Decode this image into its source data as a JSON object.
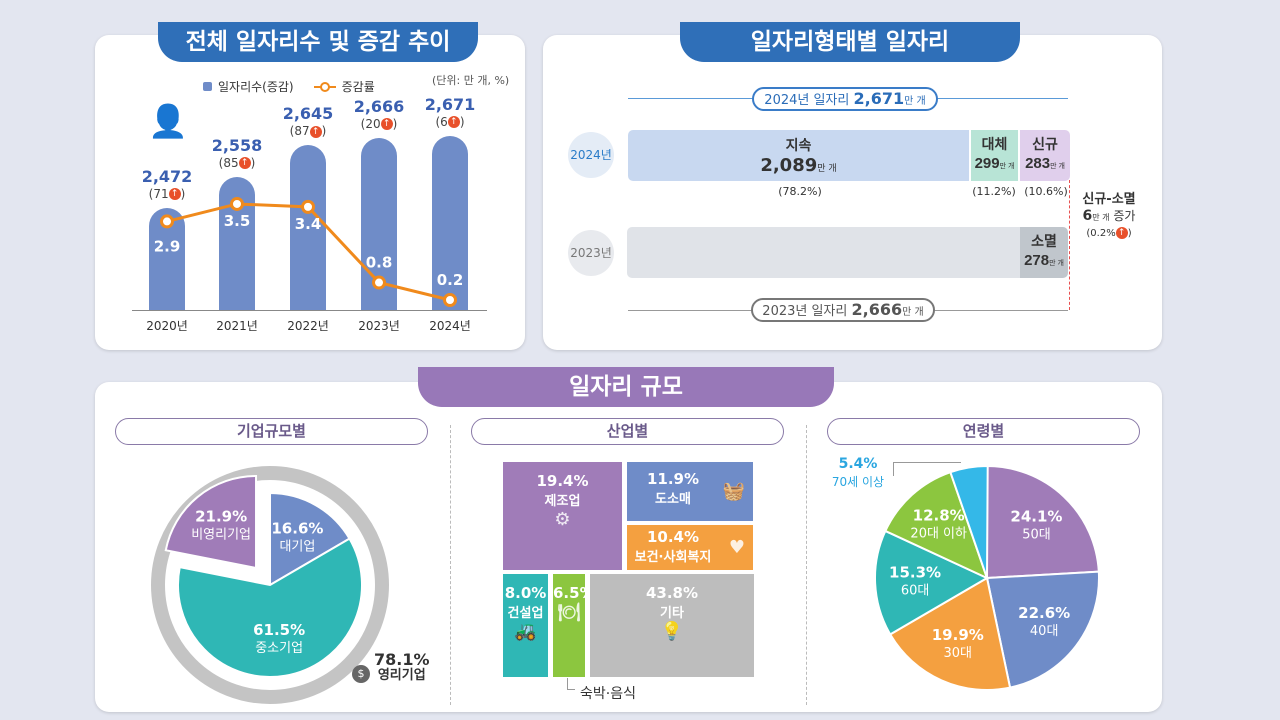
{
  "panel1": {
    "title": "전체 일자리수 및 증감 추이",
    "unit": "(단위: 만 개, %)",
    "legend_bar": "일자리수(증감)",
    "legend_line": "증감률"
  },
  "chart_data": [
    {
      "type": "bar+line",
      "categories": [
        "2020년",
        "2021년",
        "2022년",
        "2023년",
        "2024년"
      ],
      "series": [
        {
          "name": "일자리수(증감)",
          "values": [
            2472,
            2558,
            2645,
            2666,
            2671
          ],
          "labels": [
            "2,472",
            "2,558",
            "2,645",
            "2,666",
            "2,671"
          ],
          "change": [
            "71",
            "85",
            "87",
            "20",
            "6"
          ],
          "color": "#6f8cc8"
        },
        {
          "name": "증감률",
          "values": [
            2.9,
            3.5,
            3.4,
            0.8,
            0.2
          ],
          "labels": [
            "2.9",
            "3.5",
            "3.4",
            "0.8",
            "0.2"
          ],
          "color": "#f08a1c"
        }
      ]
    },
    {
      "type": "pie",
      "title": "기업규모별",
      "slices": [
        {
          "label": "대기업",
          "value": 16.6,
          "pct": "16.6%",
          "color": "#6f8cc8"
        },
        {
          "label": "중소기업",
          "value": 61.5,
          "pct": "61.5%",
          "color": "#2fb7b5"
        },
        {
          "label": "비영리기업",
          "value": 21.9,
          "pct": "21.9%",
          "color": "#a07cb8"
        }
      ],
      "ring": {
        "label": "영리기업",
        "pct": "78.1%"
      }
    },
    {
      "type": "treemap",
      "title": "산업별",
      "items": [
        {
          "label": "제조업",
          "pct": "19.4%",
          "color": "#a07cb8"
        },
        {
          "label": "도소매",
          "pct": "11.9%",
          "color": "#6f8cc8"
        },
        {
          "label": "보건·사회복지",
          "pct": "10.4%",
          "color": "#f4a040"
        },
        {
          "label": "건설업",
          "pct": "8.0%",
          "color": "#2fb7b5"
        },
        {
          "label": "숙박·음식",
          "pct": "6.5%",
          "color": "#8cc63f"
        },
        {
          "label": "기타",
          "pct": "43.8%",
          "color": "#bdbdbd"
        }
      ]
    },
    {
      "type": "pie",
      "title": "연령별",
      "slices": [
        {
          "label": "50대",
          "value": 24.1,
          "pct": "24.1%",
          "color": "#a07cb8"
        },
        {
          "label": "40대",
          "value": 22.6,
          "pct": "22.6%",
          "color": "#6f8cc8"
        },
        {
          "label": "30대",
          "value": 19.9,
          "pct": "19.9%",
          "color": "#f4a040"
        },
        {
          "label": "60대",
          "value": 15.3,
          "pct": "15.3%",
          "color": "#2fb7b5"
        },
        {
          "label": "20대 이하",
          "value": 12.8,
          "pct": "12.8%",
          "color": "#8cc63f"
        },
        {
          "label": "70세 이상",
          "value": 5.4,
          "pct": "5.4%",
          "color": "#34b8e8"
        }
      ]
    }
  ],
  "panel2": {
    "title": "일자리형태별 일자리",
    "y2024": "2024년",
    "y2023": "2023년",
    "total2024_label": "2024년 일자리",
    "total2024": "2,671",
    "total2023_label": "2023년 일자리",
    "total2023": "2,666",
    "unit": "만 개",
    "cont": {
      "label": "지속",
      "value": "2,089",
      "pct": "(78.2%)"
    },
    "repl": {
      "label": "대체",
      "value": "299",
      "pct": "(11.2%)"
    },
    "new": {
      "label": "신규",
      "value": "283",
      "pct": "(10.6%)"
    },
    "gone": {
      "label": "소멸",
      "value": "278"
    },
    "net": {
      "label": "신규-소멸",
      "value": "6",
      "suffix": "증가",
      "pct": "(0.2%"
    }
  },
  "panel3": {
    "title": "일자리 규모",
    "sub1": "기업규모별",
    "sub2": "산업별",
    "sub3": "연령별"
  }
}
